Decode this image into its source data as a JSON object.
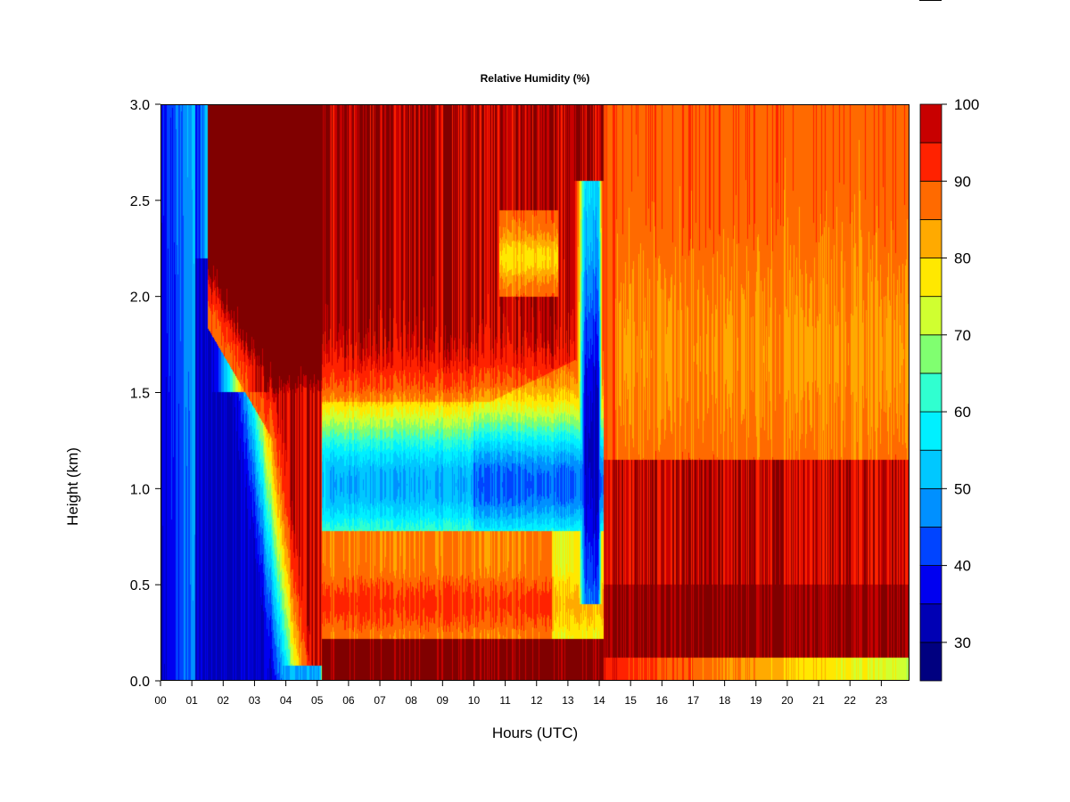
{
  "chart_data": {
    "type": "heatmap",
    "title": "Relative Humidity (%)",
    "xlabel": "Hours (UTC)",
    "ylabel": "Height (km)",
    "x_unit_hours_range": [
      0,
      23.9
    ],
    "xlim": [
      0,
      23.9
    ],
    "ylim": [
      0,
      3.0
    ],
    "x_ticks": [
      "00",
      "01",
      "02",
      "03",
      "04",
      "05",
      "06",
      "07",
      "08",
      "09",
      "10",
      "11",
      "12",
      "13",
      "14",
      "15",
      "16",
      "17",
      "18",
      "19",
      "20",
      "21",
      "22",
      "23"
    ],
    "y_ticks": [
      "0.0",
      "0.5",
      "1.0",
      "1.5",
      "2.0",
      "2.5",
      "3.0"
    ],
    "y_tick_values": [
      0,
      0.5,
      1.0,
      1.5,
      2.0,
      2.5,
      3.0
    ],
    "colorbar": {
      "range": [
        25,
        100
      ],
      "tick_labels": [
        "30",
        "40",
        "50",
        "60",
        "70",
        "80",
        "90",
        "100"
      ],
      "tick_values": [
        30,
        40,
        50,
        60,
        70,
        80,
        90,
        100
      ],
      "levels": [
        25,
        30,
        35,
        40,
        45,
        50,
        55,
        60,
        65,
        70,
        75,
        80,
        85,
        90,
        95,
        100
      ],
      "colors": [
        "#000080",
        "#0000b4",
        "#0000f0",
        "#0044ff",
        "#0090ff",
        "#00c8ff",
        "#00f0ff",
        "#30ffd0",
        "#80ff70",
        "#d0ff30",
        "#ffe800",
        "#ffaa00",
        "#ff6a00",
        "#ff2200",
        "#c80000"
      ]
    },
    "grid": false,
    "features": [
      {
        "description": "dry layer",
        "x": [
          0,
          1.3
        ],
        "y": [
          0,
          3.0
        ],
        "rh_min": 30
      },
      {
        "description": "saturated layer",
        "x": [
          1.6,
          5.1
        ],
        "y": [
          1.3,
          3.0
        ],
        "rh": 100
      },
      {
        "description": "dry layer",
        "x": [
          5.3,
          11.0
        ],
        "y": [
          0.75,
          1.35
        ],
        "rh_min": 45
      },
      {
        "description": "saturated layer",
        "x": [
          5.3,
          13.5
        ],
        "y": [
          0.0,
          0.2
        ],
        "rh": 100
      },
      {
        "description": "dry layer",
        "x": [
          13.3,
          14.2
        ],
        "y": [
          0.5,
          2.3
        ],
        "rh_min": 35
      },
      {
        "description": "saturated layer",
        "x": [
          14.3,
          23.9
        ],
        "y": [
          0.05,
          1.2
        ],
        "rh": 100
      }
    ]
  }
}
